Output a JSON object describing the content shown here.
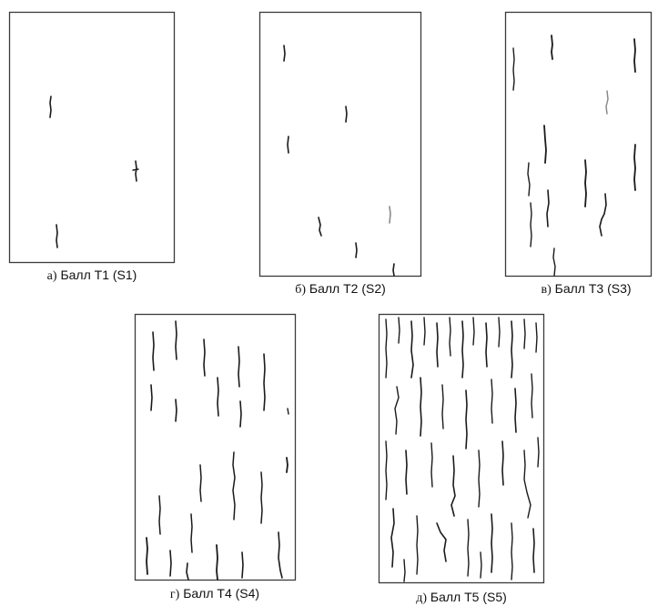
{
  "panels": [
    {
      "prefix": "а)",
      "label": "Балл T1 (S1)"
    },
    {
      "prefix": "б)",
      "label": "Балл T2 (S2)"
    },
    {
      "prefix": "в)",
      "label": "Балл T3 (S3)"
    },
    {
      "prefix": "г)",
      "label": "Балл T4 (S4)"
    },
    {
      "prefix": "д)",
      "label": "Балл T5 (S5)"
    }
  ]
}
